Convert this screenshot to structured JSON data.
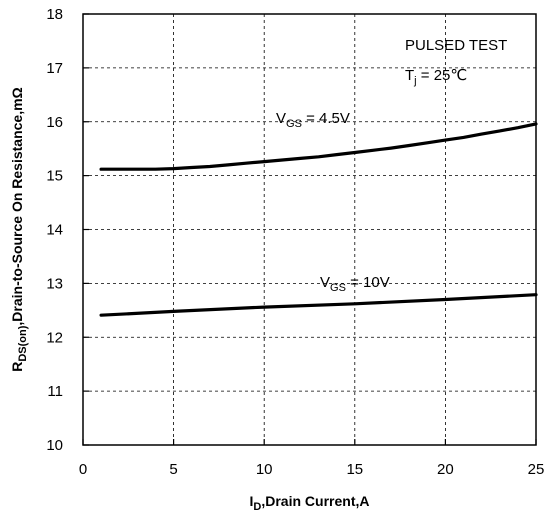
{
  "chart_data": {
    "type": "line",
    "title": "",
    "xlabel": {
      "main": "I",
      "sub": "D",
      "rest": ",Drain Current,A"
    },
    "ylabel": {
      "main": "R",
      "sub": "DS(on)",
      "rest": ",Drain-to-Source On Resistance,mΩ"
    },
    "xlim": [
      0,
      25
    ],
    "ylim": [
      10,
      18
    ],
    "xticks": [
      0,
      5,
      10,
      15,
      20,
      25
    ],
    "yticks": [
      10,
      11,
      12,
      13,
      14,
      15,
      16,
      17,
      18
    ],
    "grid": true,
    "grid_style": "dashed",
    "annotations": {
      "test_condition": "PULSED TEST",
      "temperature": {
        "main": "T",
        "sub": "j",
        "rest": " = 25℃"
      }
    },
    "series": [
      {
        "label": {
          "main": "V",
          "sub": "GS",
          "rest": " = 4.5V"
        },
        "x": [
          1,
          2,
          3,
          4,
          5,
          6,
          7,
          8,
          9,
          10,
          11,
          12,
          13,
          14,
          15,
          16,
          17,
          18,
          19,
          20,
          21,
          22,
          23,
          24,
          25
        ],
        "y": [
          15.12,
          15.12,
          15.12,
          15.12,
          15.13,
          15.15,
          15.17,
          15.2,
          15.23,
          15.26,
          15.29,
          15.32,
          15.35,
          15.39,
          15.43,
          15.47,
          15.51,
          15.56,
          15.61,
          15.66,
          15.71,
          15.77,
          15.83,
          15.89,
          15.96
        ]
      },
      {
        "label": {
          "main": "V",
          "sub": "GS",
          "rest": " = 10V"
        },
        "x": [
          1,
          5,
          10,
          15,
          20,
          25
        ],
        "y": [
          12.41,
          12.48,
          12.56,
          12.62,
          12.7,
          12.79
        ]
      }
    ]
  }
}
